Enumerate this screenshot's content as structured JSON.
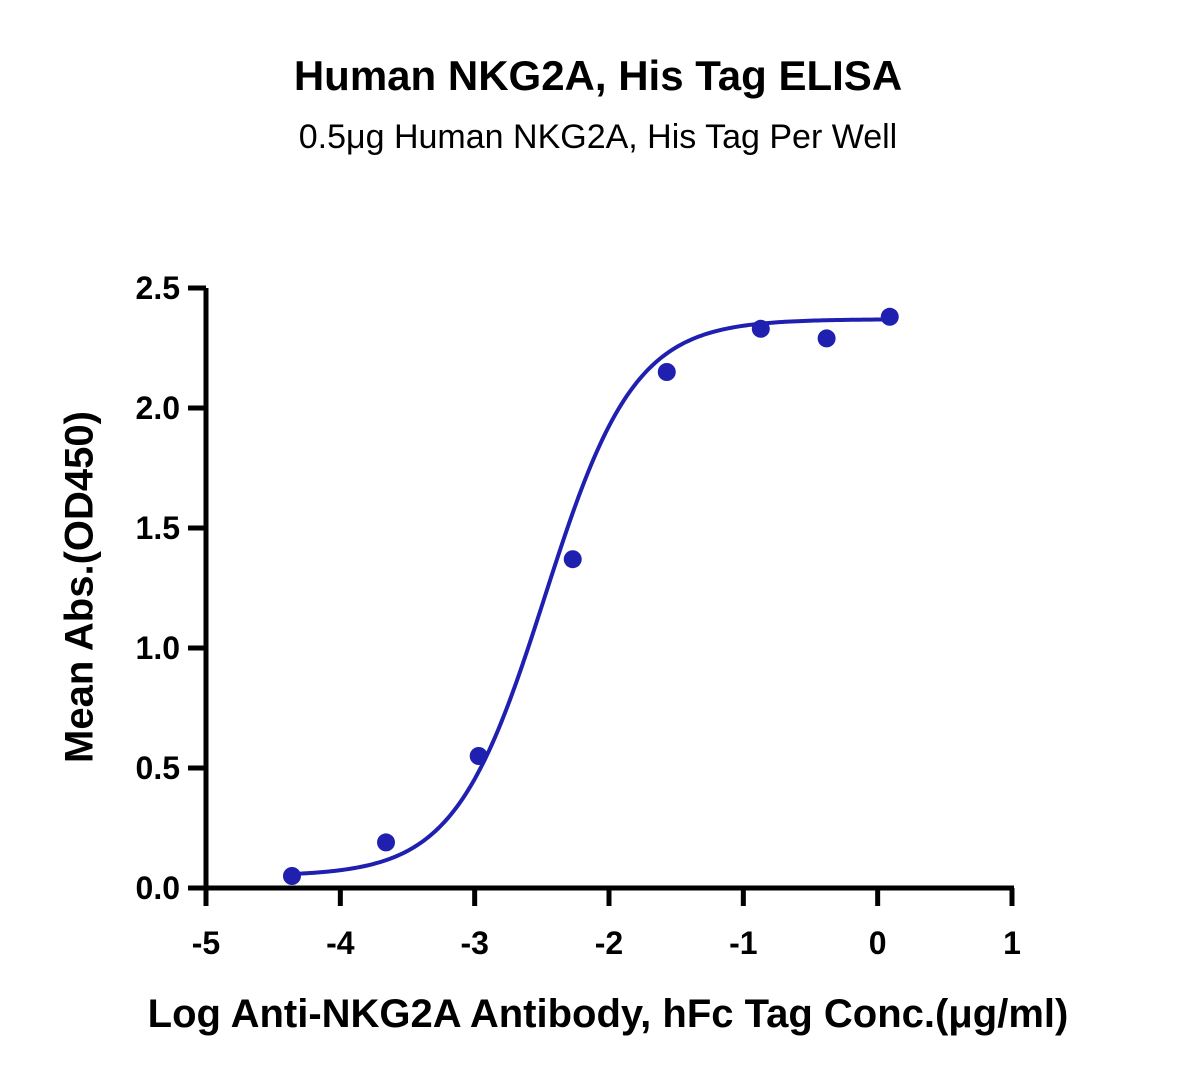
{
  "chart_data": {
    "type": "scatter",
    "title": "Human NKG2A, His Tag ELISA",
    "subtitle": "0.5μg Human NKG2A, His Tag Per Well",
    "xlabel": "Log Anti-NKG2A Antibody, hFc Tag Conc.(μg/ml)",
    "ylabel": "Mean Abs.(OD450)",
    "xlim": [
      -5,
      1
    ],
    "ylim": [
      0,
      2.5
    ],
    "xticks": [
      -5,
      -4,
      -3,
      -2,
      -1,
      0,
      1
    ],
    "xtick_labels": [
      "-5",
      "-4",
      "-3",
      "-2",
      "-1",
      "0",
      "1"
    ],
    "yticks": [
      0,
      0.5,
      1.0,
      1.5,
      2.0,
      2.5
    ],
    "ytick_labels": [
      "0.0",
      "0.5",
      "1.0",
      "1.5",
      "2.0",
      "2.5"
    ],
    "grid": false,
    "series": [
      {
        "points": [
          {
            "x": -4.36,
            "y": 0.05
          },
          {
            "x": -3.66,
            "y": 0.19
          },
          {
            "x": -2.97,
            "y": 0.55
          },
          {
            "x": -2.27,
            "y": 1.37
          },
          {
            "x": -1.57,
            "y": 2.15
          },
          {
            "x": -0.87,
            "y": 2.33
          },
          {
            "x": -0.38,
            "y": 2.29
          },
          {
            "x": 0.09,
            "y": 2.38
          }
        ],
        "fit": {
          "model": "4PL",
          "bottom": 0.05,
          "top": 2.37,
          "log_ec50": -2.48,
          "hill_slope": 1.3
        },
        "color": "#1f1fb0"
      }
    ]
  }
}
